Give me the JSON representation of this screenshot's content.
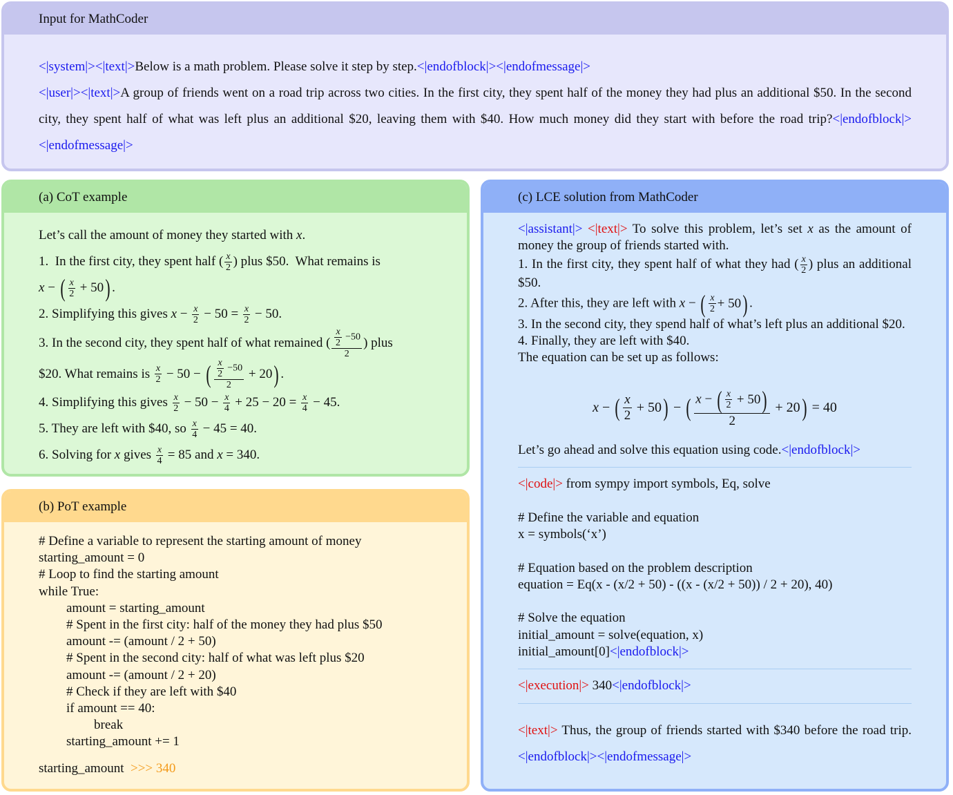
{
  "colors": {
    "token_blue": "#1a1aee",
    "token_red": "#e01010",
    "output_orange": "#f39a1a",
    "input_header": "#c6c6ee",
    "cot_header": "#b0e6a6",
    "pot_header": "#ffd98e",
    "lce_header": "#8fb0f7"
  },
  "input": {
    "title": "Input for MathCoder",
    "paras": [
      [
        [
          "b",
          "<|system|><|text|>"
        ],
        [
          "t",
          "Below is a math problem. Please solve it step by step."
        ],
        [
          "b",
          "<|endofblock|><|endofmessage|>"
        ]
      ],
      [
        [
          "b",
          "<|user|><|text|>"
        ],
        [
          "t",
          "A group of friends went on a road trip across two cities.  In the first city, they spent half of the money they had plus an additional $50. In the second city, they spent half of what was left plus an additional $20, leaving them with $40.  How much money did they start with before the road trip?"
        ],
        [
          "b",
          "<|endofblock|><|endofmessage|>"
        ]
      ]
    ]
  },
  "cot": {
    "title": "(a) CoT example",
    "lines": [
      [
        [
          "t",
          "Let’s call the amount of money they started with "
        ],
        [
          "m",
          "x"
        ],
        [
          "t",
          "."
        ]
      ],
      [
        [
          "t",
          "1.  In the first city, they spent half ("
        ],
        [
          "f",
          [
            [
              "m",
              "x"
            ]
          ],
          [
            [
              "t",
              "2"
            ]
          ]
        ],
        [
          "t",
          ") plus $50.  What remains is"
        ]
      ],
      [
        [
          "m",
          "x"
        ],
        [
          "t",
          " − "
        ],
        [
          "P",
          [
            [
              "f",
              [
                [
                  "m",
                  "x"
                ]
              ],
              [
                [
                  "t",
                  "2"
                ]
              ]
            ],
            [
              "t",
              " + 50"
            ]
          ]
        ],
        [
          "t",
          "."
        ]
      ],
      [
        [
          "t",
          "2. Simplifying this gives "
        ],
        [
          "m",
          "x"
        ],
        [
          "t",
          " − "
        ],
        [
          "f",
          [
            [
              "m",
              "x"
            ]
          ],
          [
            [
              "t",
              "2"
            ]
          ]
        ],
        [
          "t",
          " − 50 = "
        ],
        [
          "f",
          [
            [
              "m",
              "x"
            ]
          ],
          [
            [
              "t",
              "2"
            ]
          ]
        ],
        [
          "t",
          " − 50."
        ]
      ],
      [
        [
          "t",
          "3. In the second city, they spent half of what remained ("
        ],
        [
          "f",
          [
            [
              "f",
              [
                [
                  "m",
                  "x"
                ]
              ],
              [
                [
                  "t",
                  "2"
                ]
              ]
            ],
            [
              "t",
              " −50"
            ]
          ],
          [
            [
              "t",
              "2"
            ]
          ]
        ],
        [
          "t",
          ") plus"
        ]
      ],
      [
        [
          "t",
          "$20. What remains is "
        ],
        [
          "f",
          [
            [
              "m",
              "x"
            ]
          ],
          [
            [
              "t",
              "2"
            ]
          ]
        ],
        [
          "t",
          " − 50 − "
        ],
        [
          "P",
          [
            [
              "f",
              [
                [
                  "f",
                  [
                    [
                      "m",
                      "x"
                    ]
                  ],
                  [
                    [
                      "t",
                      "2"
                    ]
                  ]
                ],
                [
                  "t",
                  " −50"
                ]
              ],
              [
                [
                  "t",
                  "2"
                ]
              ]
            ],
            [
              "t",
              " + 20"
            ]
          ]
        ],
        [
          "t",
          "."
        ]
      ],
      [
        [
          "t",
          "4. Simplifying this gives "
        ],
        [
          "f",
          [
            [
              "m",
              "x"
            ]
          ],
          [
            [
              "t",
              "2"
            ]
          ]
        ],
        [
          "t",
          " − 50 − "
        ],
        [
          "f",
          [
            [
              "m",
              "x"
            ]
          ],
          [
            [
              "t",
              "4"
            ]
          ]
        ],
        [
          "t",
          " + 25 − 20 = "
        ],
        [
          "f",
          [
            [
              "m",
              "x"
            ]
          ],
          [
            [
              "t",
              "4"
            ]
          ]
        ],
        [
          "t",
          " − 45."
        ]
      ],
      [
        [
          "t",
          "5. They are left with $40, so "
        ],
        [
          "f",
          [
            [
              "m",
              "x"
            ]
          ],
          [
            [
              "t",
              "4"
            ]
          ]
        ],
        [
          "t",
          " − 45 = 40."
        ]
      ],
      [
        [
          "t",
          "6. Solving for "
        ],
        [
          "m",
          "x"
        ],
        [
          "t",
          " gives "
        ],
        [
          "f",
          [
            [
              "m",
              "x"
            ]
          ],
          [
            [
              "t",
              "4"
            ]
          ]
        ],
        [
          "t",
          " = 85 and "
        ],
        [
          "m",
          "x"
        ],
        [
          "t",
          " = 340."
        ]
      ]
    ]
  },
  "pot": {
    "title": "(b) PoT example",
    "code": [
      {
        "indent": 0,
        "text": "# Define a variable to represent the starting amount of money"
      },
      {
        "indent": 0,
        "text": "starting_amount = 0"
      },
      {
        "indent": 0,
        "text": "# Loop to find the starting amount"
      },
      {
        "indent": 0,
        "text": "while True:"
      },
      {
        "indent": 1,
        "text": "amount = starting_amount"
      },
      {
        "indent": 1,
        "text": "# Spent in the first city: half of the money they had plus $50"
      },
      {
        "indent": 1,
        "text": "amount -= (amount / 2 + 50)"
      },
      {
        "indent": 1,
        "text": "# Spent in the second city: half of what was left plus $20"
      },
      {
        "indent": 1,
        "text": "amount -= (amount / 2 + 20)"
      },
      {
        "indent": 1,
        "text": "# Check if they are left with $40"
      },
      {
        "indent": 1,
        "text": "if amount == 40:"
      },
      {
        "indent": 2,
        "text": "break"
      },
      {
        "indent": 1,
        "text": "starting_amount += 1"
      }
    ],
    "final": "starting_amount",
    "output": ">>> 340"
  },
  "lce": {
    "title": "(c) LCE solution from MathCoder",
    "text_lines": [
      [
        [
          "b",
          "<|assistant|>"
        ],
        [
          "t",
          " "
        ],
        [
          "r",
          "<|text|>"
        ],
        [
          "t",
          " To solve this problem, let’s set "
        ],
        [
          "m",
          "x"
        ],
        [
          "t",
          " as the amount of money the group of friends started with."
        ]
      ],
      [
        [
          "t",
          "1.  In the first city, they spent half of what they had ("
        ],
        [
          "f",
          [
            [
              "m",
              "x"
            ]
          ],
          [
            [
              "t",
              "2"
            ]
          ]
        ],
        [
          "t",
          ") plus an additional $50."
        ]
      ],
      [
        [
          "t",
          "2. After this, they are left with "
        ],
        [
          "m",
          "x"
        ],
        [
          "t",
          " − "
        ],
        [
          "P",
          [
            [
              "f",
              [
                [
                  "m",
                  "x"
                ]
              ],
              [
                [
                  "t",
                  "2"
                ]
              ]
            ],
            [
              "t",
              " + 50"
            ]
          ]
        ],
        [
          "t",
          "."
        ]
      ],
      [
        [
          "t",
          "3. In the second city, they spend half of what’s left plus an additional $20."
        ]
      ],
      [
        [
          "t",
          "4. Finally, they are left with $40."
        ]
      ],
      [
        [
          "t",
          "The equation can be set up as follows:"
        ]
      ]
    ],
    "equation": [
      [
        "m",
        "x"
      ],
      [
        "t",
        " − "
      ],
      [
        "P",
        [
          [
            "f",
            [
              [
                "m",
                "x"
              ]
            ],
            [
              [
                "t",
                "2"
              ]
            ]
          ],
          [
            "t",
            " + 50"
          ]
        ]
      ],
      [
        "t",
        " − "
      ],
      [
        "P",
        [
          [
            "f",
            [
              [
                "m",
                "x"
              ],
              [
                "t",
                " − "
              ],
              [
                "P",
                [
                  [
                    "f",
                    [
                      [
                        "m",
                        "x"
                      ]
                    ],
                    [
                      [
                        "t",
                        "2"
                      ]
                    ]
                  ],
                  [
                    "t",
                    " + 50"
                  ]
                ]
              ]
            ],
            [
              [
                "t",
                "2"
              ]
            ]
          ],
          [
            "t",
            " + 20"
          ]
        ]
      ],
      [
        "t",
        " = 40"
      ]
    ],
    "after_eq": [
      [
        "t",
        "Let’s go ahead and solve this equation using code."
      ],
      [
        "b",
        "<|endofblock|>"
      ]
    ],
    "code_token": "<|code|>",
    "code": [
      "from sympy import symbols, Eq, solve",
      "",
      "# Define the variable and equation",
      "x = symbols(‘x’)",
      "",
      "# Equation based on the problem description",
      "equation = Eq(x - (x/2 + 50) - ((x - (x/2 + 50)) / 2 + 20), 40)",
      "",
      "# Solve the equation",
      "initial_amount = solve(equation, x)",
      "initial_amount[0]"
    ],
    "code_end": "<|endofblock|>",
    "exec_token": "<|execution|>",
    "exec_value": " 340",
    "exec_end": "<|endofblock|>",
    "final": [
      [
        "r",
        "<|text|>"
      ],
      [
        "t",
        " Thus, the group of friends started with $340 before the road trip."
      ],
      [
        "b",
        "<|endofblock|><|endofmessage|>"
      ]
    ]
  }
}
